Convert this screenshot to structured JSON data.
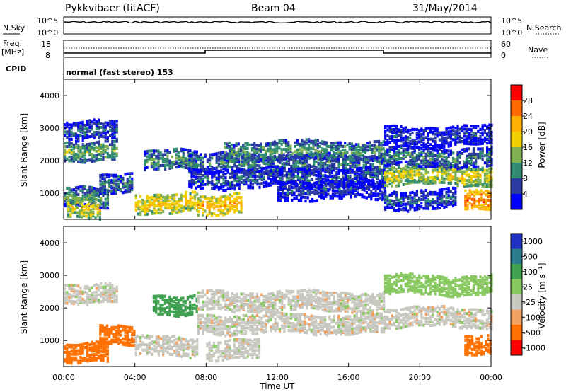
{
  "header": {
    "station": "Pykkvibaer (fitACF)",
    "beam": "Beam 04",
    "date": "31/May/2014"
  },
  "panels": {
    "noise": {
      "left_label": "N.Sky",
      "right_label": "N.Search",
      "left_ticks": [
        "10^5",
        "10^0"
      ],
      "right_ticks": [
        "10^5",
        "10^0"
      ]
    },
    "freq": {
      "left_label_1": "Freq.",
      "left_label_2": "[MHz]",
      "right_label": "Nave",
      "left_ticks": [
        "18",
        "8"
      ],
      "right_ticks": [
        "60",
        "0"
      ]
    },
    "cpid": {
      "label": "CPID",
      "program": "normal (fast stereo) 153"
    }
  },
  "chart_data": [
    {
      "type": "heatmap",
      "title": "",
      "xlabel": "",
      "ylabel": "Slant Range [km]",
      "colorbar_label": "Power [dB]",
      "colorbar_ticks": [
        "28",
        "24",
        "20",
        "16",
        "12",
        "8",
        "4"
      ],
      "colorbar_colors": [
        "#ff0000",
        "#ff6a00",
        "#ffb000",
        "#f0d000",
        "#7fb050",
        "#2f8a70",
        "#2a3aa0",
        "#0000ff"
      ],
      "x_ticks": [
        "00:00",
        "04:00",
        "08:00",
        "12:00",
        "16:00",
        "20:00",
        "00:00"
      ],
      "y_ticks": [
        "1000",
        "2000",
        "3000",
        "4000"
      ],
      "ylim": [
        200,
        4500
      ],
      "bands": [
        {
          "start_h": 0.0,
          "end_h": 3.0,
          "range_km": 2300,
          "value_db": 14
        },
        {
          "start_h": 0.0,
          "end_h": 3.0,
          "range_km": 2900,
          "value_db": 8
        },
        {
          "start_h": 0.0,
          "end_h": 2.5,
          "range_km": 850,
          "value_db": 12
        },
        {
          "start_h": 0.2,
          "end_h": 2.0,
          "range_km": 550,
          "value_db": 18
        },
        {
          "start_h": 2.0,
          "end_h": 3.8,
          "range_km": 1250,
          "value_db": 10
        },
        {
          "start_h": 4.0,
          "end_h": 7.5,
          "range_km": 700,
          "value_db": 20
        },
        {
          "start_h": 4.5,
          "end_h": 7.5,
          "range_km": 2000,
          "value_db": 12
        },
        {
          "start_h": 7.5,
          "end_h": 10.0,
          "range_km": 650,
          "value_db": 22
        },
        {
          "start_h": 7.0,
          "end_h": 18.0,
          "range_km": 1900,
          "value_db": 10
        },
        {
          "start_h": 9.0,
          "end_h": 18.0,
          "range_km": 2300,
          "value_db": 12
        },
        {
          "start_h": 7.0,
          "end_h": 18.0,
          "range_km": 1450,
          "value_db": 8
        },
        {
          "start_h": 12.0,
          "end_h": 18.0,
          "range_km": 1100,
          "value_db": 6
        },
        {
          "start_h": 18.0,
          "end_h": 24.0,
          "range_km": 1550,
          "value_db": 18
        },
        {
          "start_h": 18.0,
          "end_h": 24.0,
          "range_km": 2100,
          "value_db": 10
        },
        {
          "start_h": 18.0,
          "end_h": 24.0,
          "range_km": 2750,
          "value_db": 6
        },
        {
          "start_h": 18.0,
          "end_h": 22.0,
          "range_km": 800,
          "value_db": 8
        },
        {
          "start_h": 22.5,
          "end_h": 24.0,
          "range_km": 850,
          "value_db": 26
        }
      ]
    },
    {
      "type": "heatmap",
      "title": "",
      "xlabel": "Time UT",
      "ylabel": "Slant Range [km]",
      "colorbar_label": "Velocity [m s⁻¹]",
      "colorbar_ticks": [
        "1000",
        "500",
        "100",
        "25",
        "-25",
        "-100",
        "-500",
        "-1000"
      ],
      "colorbar_colors": [
        "#2030c0",
        "#2a7a8a",
        "#3fa050",
        "#88c860",
        "#c8c8c0",
        "#f0a060",
        "#ff7000",
        "#ff0000"
      ],
      "x_ticks": [
        "00:00",
        "04:00",
        "08:00",
        "12:00",
        "16:00",
        "20:00",
        "00:00"
      ],
      "y_ticks": [
        "1000",
        "2000",
        "3000",
        "4000"
      ],
      "ylim": [
        200,
        4500
      ],
      "bands": [
        {
          "start_h": 0.0,
          "end_h": 3.0,
          "range_km": 2450,
          "value_ms": 0
        },
        {
          "start_h": 0.0,
          "end_h": 2.5,
          "range_km": 600,
          "value_ms": -300
        },
        {
          "start_h": 2.0,
          "end_h": 4.0,
          "range_km": 1200,
          "value_ms": -200
        },
        {
          "start_h": 4.0,
          "end_h": 7.5,
          "range_km": 800,
          "value_ms": 0
        },
        {
          "start_h": 5.0,
          "end_h": 7.5,
          "range_km": 2100,
          "value_ms": 300
        },
        {
          "start_h": 7.5,
          "end_h": 18.0,
          "range_km": 2200,
          "value_ms": 0
        },
        {
          "start_h": 7.5,
          "end_h": 18.0,
          "range_km": 1500,
          "value_ms": 0
        },
        {
          "start_h": 8.0,
          "end_h": 11.0,
          "range_km": 700,
          "value_ms": 0
        },
        {
          "start_h": 18.0,
          "end_h": 24.0,
          "range_km": 1700,
          "value_ms": 0
        },
        {
          "start_h": 18.0,
          "end_h": 24.0,
          "range_km": 2700,
          "value_ms": 60
        },
        {
          "start_h": 22.5,
          "end_h": 24.0,
          "range_km": 800,
          "value_ms": -200
        }
      ]
    }
  ]
}
